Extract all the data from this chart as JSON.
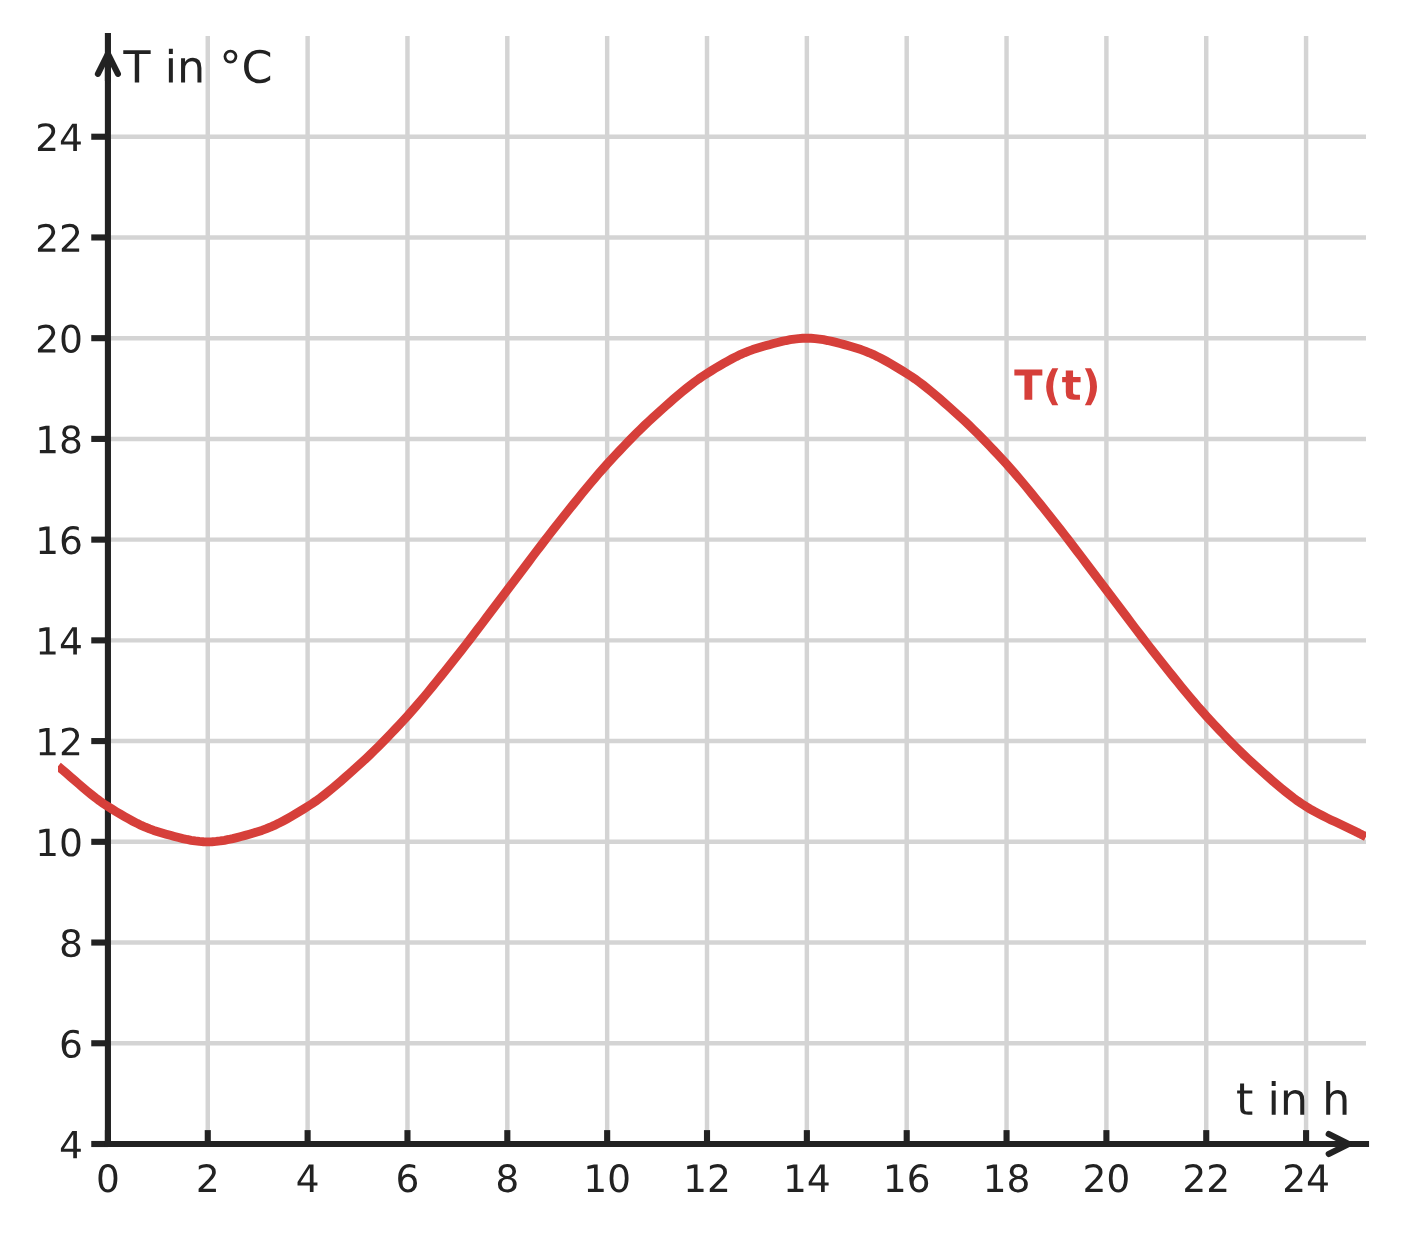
{
  "chart_data": {
    "type": "line",
    "xlabel": "t in h",
    "ylabel": "T in °C",
    "x": [
      -1,
      0,
      1,
      2,
      3,
      4,
      5,
      6,
      7,
      8,
      9,
      10,
      11,
      12,
      13,
      14,
      15,
      16,
      17,
      18,
      19,
      20,
      21,
      22,
      23,
      24,
      25,
      25.2
    ],
    "series": [
      {
        "name": "T(t)",
        "color": "#d63f3a",
        "values": [
          11.5,
          10.7,
          10.2,
          10.0,
          10.2,
          10.7,
          11.5,
          12.5,
          13.7,
          15.0,
          16.3,
          17.5,
          18.5,
          19.3,
          19.8,
          20.0,
          19.8,
          19.3,
          18.5,
          17.5,
          16.3,
          15.0,
          13.7,
          12.5,
          11.5,
          10.7,
          10.2,
          10.1
        ]
      }
    ],
    "xlim": [
      -1,
      25.2
    ],
    "ylim": [
      4,
      26
    ],
    "xticks": [
      0,
      2,
      4,
      6,
      8,
      10,
      12,
      14,
      16,
      18,
      20,
      22,
      24
    ],
    "yticks": [
      4,
      6,
      8,
      10,
      12,
      14,
      16,
      18,
      20,
      22,
      24
    ],
    "grid": true,
    "legend": false,
    "marker": "none",
    "line_style": "solid"
  }
}
